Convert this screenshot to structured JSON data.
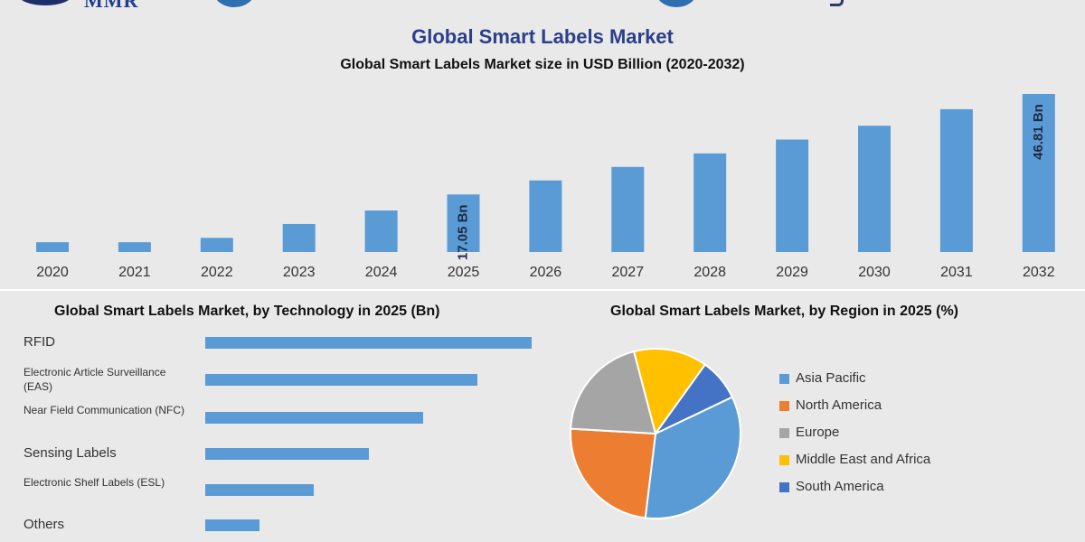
{
  "header": {
    "logo_text": "MMR"
  },
  "colors": {
    "bar": "#5b9bd5",
    "title": "#2b3f8a",
    "background": "#e9e9e9"
  },
  "chart_data": [
    {
      "type": "bar",
      "title": "Global Smart Labels Market",
      "subtitle": "Global Smart Labels Market size in USD Billion (2020-2032)",
      "categories": [
        "2020",
        "2021",
        "2022",
        "2023",
        "2024",
        "2025",
        "2026",
        "2027",
        "2028",
        "2029",
        "2030",
        "2031",
        "2032"
      ],
      "values": [
        2.9,
        2.9,
        4.2,
        8.3,
        12.3,
        17.05,
        21.2,
        25.2,
        29.2,
        33.3,
        37.4,
        42.3,
        46.81
      ],
      "data_labels": [
        {
          "category": "2025",
          "text": "17.05 Bn"
        },
        {
          "category": "2032",
          "text": "46.81 Bn"
        }
      ],
      "grid": false
    },
    {
      "type": "bar",
      "orientation": "horizontal",
      "title": "Global Smart Labels Market, by Technology in 2025 (Bn)",
      "categories": [
        "RFID",
        "Electronic Article Surveillance (EAS)",
        "Near Field Communication (NFC)",
        "Sensing Labels",
        "Electronic Shelf Labels (ESL)",
        "Others"
      ],
      "values": [
        6,
        5,
        4,
        3,
        2,
        1
      ],
      "grid": false
    },
    {
      "type": "pie",
      "title": "Global Smart Labels Market, by Region in 2025 (%)",
      "series": [
        {
          "name": "Asia Pacific",
          "value": 34,
          "color": "#5b9bd5"
        },
        {
          "name": "North America",
          "value": 24,
          "color": "#ed7d31"
        },
        {
          "name": "Europe",
          "value": 20,
          "color": "#a5a5a5"
        },
        {
          "name": "Middle East and Africa",
          "value": 14,
          "color": "#ffc000"
        },
        {
          "name": "South America",
          "value": 8,
          "color": "#4472c4"
        }
      ],
      "legend_position": "right"
    }
  ]
}
